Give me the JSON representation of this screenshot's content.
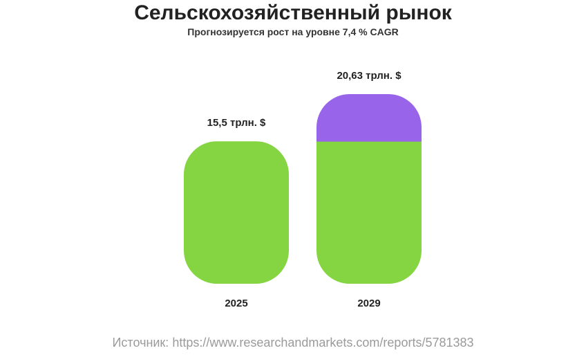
{
  "header": {
    "title": "Сельскохозяйственный рынок",
    "subtitle": "Прогнозируется рост на уровне 7,4 % CAGR"
  },
  "source": "Источник: https://www.researchandmarkets.com/reports/5781383",
  "colors": {
    "base": "#84d541",
    "growth": "#9764ea",
    "text": "#222222",
    "source": "#9a9a9a"
  },
  "chart_data": {
    "type": "bar",
    "categories": [
      "2025",
      "2029"
    ],
    "series": [
      {
        "name": "",
        "values": [
          15.5,
          15.5
        ]
      },
      {
        "name": "",
        "values": [
          0,
          5.13
        ]
      }
    ],
    "totals": [
      15.5,
      20.63
    ],
    "data_labels": [
      "15,5 трлн. $",
      "20,63 трлн. $"
    ],
    "ylim": [
      0,
      20.63
    ],
    "grid": false
  }
}
